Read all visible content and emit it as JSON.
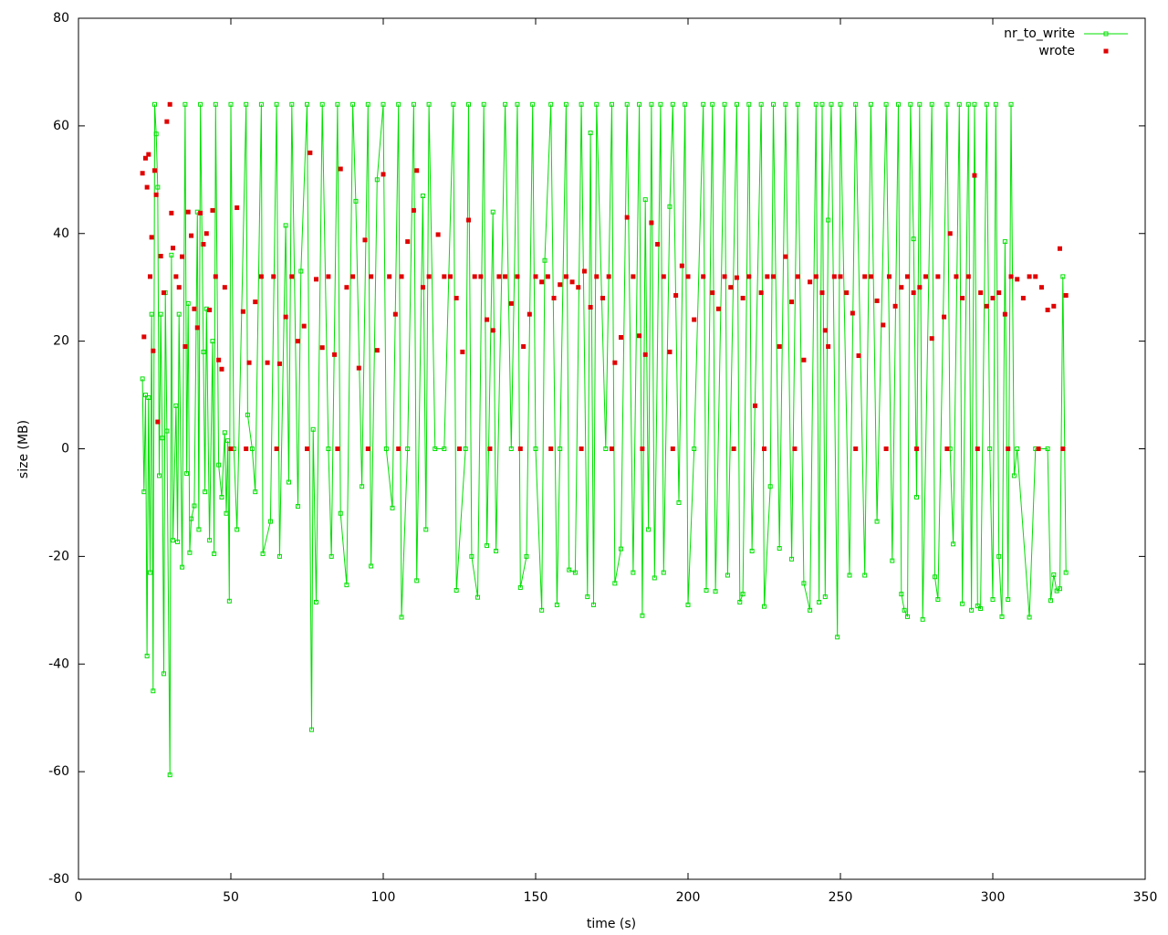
{
  "chart_data": {
    "type": "line",
    "xlabel": "time (s)",
    "ylabel": "size (MB)",
    "xlim": [
      0,
      350
    ],
    "xticks": [
      0,
      50,
      100,
      150,
      200,
      250,
      300,
      350
    ],
    "ylim": [
      -80,
      80
    ],
    "yticks": [
      -80,
      -60,
      -40,
      -20,
      0,
      20,
      40,
      60,
      80
    ],
    "legend": "top-right",
    "series": [
      {
        "name": "nr_to_write",
        "color": "#00e000",
        "style": "linespoints",
        "x": [
          21,
          21.5,
          22,
          22.5,
          23,
          23.5,
          24,
          24.5,
          25,
          25.5,
          26,
          26.5,
          27,
          27.5,
          28,
          28.5,
          29,
          30,
          30.5,
          31,
          32,
          32.5,
          33,
          34,
          35,
          35.5,
          36,
          36.5,
          37,
          38,
          39,
          39.5,
          40,
          41,
          41.5,
          42,
          43,
          44,
          44.5,
          45,
          46,
          47,
          48,
          48.5,
          49,
          49.5,
          50,
          51,
          52,
          55,
          55.5,
          57,
          58,
          60,
          60.5,
          63,
          65,
          66,
          68,
          69,
          70,
          72,
          73,
          75,
          76.5,
          77,
          78,
          80,
          82,
          83,
          85,
          86,
          88,
          90,
          91,
          93,
          95,
          96,
          98,
          100,
          101,
          103,
          105,
          106,
          108,
          110,
          111,
          113,
          114,
          115,
          117,
          120,
          123,
          124,
          127,
          128,
          129,
          131,
          133,
          134,
          136,
          137,
          140,
          142,
          144,
          145,
          147,
          149,
          150,
          152,
          153,
          155,
          157,
          158,
          160,
          161,
          163,
          165,
          167,
          168,
          169,
          170,
          173,
          175,
          176,
          178,
          180,
          182,
          184,
          185,
          186,
          187,
          188,
          189,
          191,
          192,
          194,
          195,
          197,
          199,
          200,
          202,
          205,
          206,
          208,
          209,
          212,
          213,
          216,
          217,
          218,
          220,
          221,
          224,
          225,
          227,
          228,
          230,
          232,
          234,
          236,
          238,
          240,
          242,
          243,
          244,
          245,
          246,
          247,
          249,
          250,
          253,
          255,
          258,
          260,
          262,
          265,
          267,
          269,
          270,
          271,
          272,
          273,
          274,
          275,
          276,
          277,
          280,
          281,
          282,
          285,
          286,
          287,
          289,
          290,
          292,
          293,
          294,
          295,
          296,
          298,
          299,
          300,
          301,
          302,
          303,
          304,
          305,
          306,
          307,
          308,
          312,
          314,
          318,
          319,
          320,
          321,
          322,
          323,
          324
        ],
        "values": [
          13,
          -8,
          10,
          -38.5,
          9.5,
          -23,
          25,
          -45,
          64,
          58.5,
          48.6,
          -5,
          25,
          2,
          -41.8,
          29,
          3.3,
          -60.6,
          36,
          -17,
          8,
          -17.3,
          25,
          -22,
          64,
          -4.6,
          27,
          -19.3,
          -13,
          -10.6,
          44,
          -15,
          64,
          18,
          -8,
          26,
          -17,
          20,
          -19.5,
          64,
          -3,
          -9,
          3,
          -12,
          1.5,
          -28.3,
          64,
          0,
          -15,
          64,
          6.3,
          0,
          -8,
          64,
          -19.5,
          -13.5,
          64,
          -20,
          41.5,
          -6.2,
          64,
          -10.7,
          33,
          64,
          -52.2,
          3.6,
          -28.5,
          64,
          0,
          -20,
          64,
          -12,
          -25.3,
          64,
          46,
          -7,
          64,
          -21.8,
          50,
          64,
          0,
          -11,
          64,
          -31.3,
          0,
          64,
          -24.5,
          47,
          -15,
          64,
          0,
          0,
          64,
          -26.3,
          0,
          64,
          -20,
          -27.6,
          64,
          -18,
          44,
          -19,
          64,
          0,
          64,
          -25.8,
          -20,
          64,
          0,
          -30,
          35,
          64,
          -29,
          0,
          64,
          -22.5,
          -23,
          64,
          -27.5,
          58.7,
          -29,
          64,
          0,
          64,
          -25,
          -18.6,
          64,
          -23,
          64,
          -31,
          46.3,
          -15,
          64,
          -24,
          64,
          -23,
          45,
          64,
          -10,
          64,
          -29,
          0,
          64,
          -26.3,
          64,
          -26.5,
          64,
          -23.5,
          64,
          -28.5,
          -27,
          64,
          -19,
          64,
          -29.3,
          -7,
          64,
          -18.5,
          64,
          -20.5,
          64,
          -25,
          -30,
          64,
          -28.5,
          64,
          -27.5,
          42.5,
          64,
          -35,
          64,
          -23.5,
          64,
          -23.5,
          64,
          -13.5,
          64,
          -20.8,
          64,
          -27,
          -30,
          -31.2,
          64,
          39,
          -9,
          64,
          -31.7,
          64,
          -23.8,
          -28,
          64,
          0,
          -17.7,
          64,
          -28.8,
          64,
          -30,
          64,
          -29.2,
          -29.7,
          64,
          0,
          -28,
          64,
          -20,
          -31.2,
          38.5,
          -28,
          64,
          -5,
          0,
          -31.3,
          0,
          0,
          -28.2,
          -23.4,
          -26.4,
          -26,
          32,
          -23
        ]
      },
      {
        "name": "wrote",
        "color": "#e00000",
        "style": "points",
        "x": [
          21,
          21.5,
          22,
          22.5,
          23,
          23.5,
          24,
          24.5,
          25,
          25.5,
          26,
          27,
          28,
          29,
          30,
          30.5,
          31,
          32,
          33,
          34,
          35,
          36,
          37,
          38,
          39,
          40,
          41,
          42,
          43,
          44,
          45,
          46,
          47,
          48,
          50,
          52,
          54,
          56,
          58,
          60,
          62,
          64,
          66,
          68,
          70,
          72,
          74,
          76,
          78,
          80,
          82,
          84,
          86,
          88,
          90,
          92,
          94,
          96,
          98,
          100,
          102,
          104,
          106,
          108,
          110,
          111,
          113,
          115,
          118,
          120,
          122,
          124,
          126,
          128,
          130,
          132,
          134,
          136,
          138,
          140,
          142,
          144,
          146,
          148,
          150,
          152,
          154,
          156,
          158,
          160,
          162,
          164,
          166,
          168,
          170,
          172,
          174,
          176,
          178,
          180,
          182,
          184,
          186,
          188,
          190,
          192,
          194,
          196,
          198,
          200,
          202,
          205,
          208,
          210,
          212,
          214,
          216,
          218,
          220,
          222,
          224,
          226,
          228,
          230,
          232,
          234,
          236,
          238,
          240,
          242,
          244,
          245,
          246,
          248,
          250,
          252,
          254,
          256,
          258,
          260,
          262,
          264,
          266,
          268,
          270,
          272,
          274,
          276,
          278,
          280,
          282,
          284,
          286,
          288,
          290,
          292,
          294,
          296,
          298,
          300,
          302,
          304,
          306,
          308,
          310,
          312,
          314,
          316,
          318,
          320,
          322,
          324,
          55,
          65,
          75,
          85,
          95,
          105,
          125,
          135,
          145,
          155,
          165,
          175,
          185,
          195,
          215,
          225,
          235,
          255,
          265,
          275,
          285,
          295,
          305,
          315,
          323
        ],
        "values": [
          51.2,
          20.8,
          54,
          48.6,
          54.7,
          32,
          39.3,
          18.2,
          51.7,
          47.2,
          5,
          35.8,
          29,
          60.8,
          64,
          43.8,
          37.3,
          32,
          30,
          35.7,
          19,
          44,
          39.6,
          26,
          22.5,
          43.8,
          38,
          40,
          25.8,
          44.3,
          32,
          16.5,
          14.8,
          30,
          0,
          44.8,
          25.5,
          16,
          27.3,
          32,
          16,
          32,
          15.8,
          24.5,
          32,
          20,
          22.8,
          55,
          31.5,
          18.8,
          32,
          17.5,
          52,
          30,
          32,
          15,
          38.8,
          32,
          18.3,
          51,
          32,
          25,
          32,
          38.5,
          44.3,
          51.7,
          30,
          32,
          39.8,
          32,
          32,
          28,
          18,
          42.5,
          32,
          32,
          24,
          22,
          32,
          32,
          27,
          32,
          19,
          25,
          32,
          31,
          32,
          28,
          30.5,
          32,
          31,
          30,
          33,
          26.3,
          32,
          28,
          32,
          16,
          20.7,
          43,
          32,
          21,
          17.5,
          42,
          38,
          32,
          18,
          28.5,
          34,
          32,
          24,
          32,
          29,
          26,
          32,
          30,
          31.8,
          28,
          32,
          8,
          29,
          32,
          32,
          19,
          35.7,
          27.3,
          32,
          16.5,
          31,
          32,
          29,
          22,
          19,
          32,
          32,
          29,
          25.2,
          17.3,
          32,
          32,
          27.5,
          23,
          32,
          26.5,
          30,
          32,
          29,
          30,
          32,
          20.5,
          32,
          24.5,
          40,
          32,
          28,
          32,
          50.8,
          29,
          26.5,
          28,
          29,
          25,
          32,
          31.5,
          28,
          32,
          32,
          30,
          25.8,
          26.5,
          37.2,
          28.5,
          0,
          0,
          0,
          0,
          0,
          0,
          0,
          0,
          0,
          0,
          0,
          0,
          0,
          0,
          0,
          0,
          0,
          0,
          0,
          0,
          0,
          0,
          0,
          0,
          0
        ]
      }
    ]
  }
}
